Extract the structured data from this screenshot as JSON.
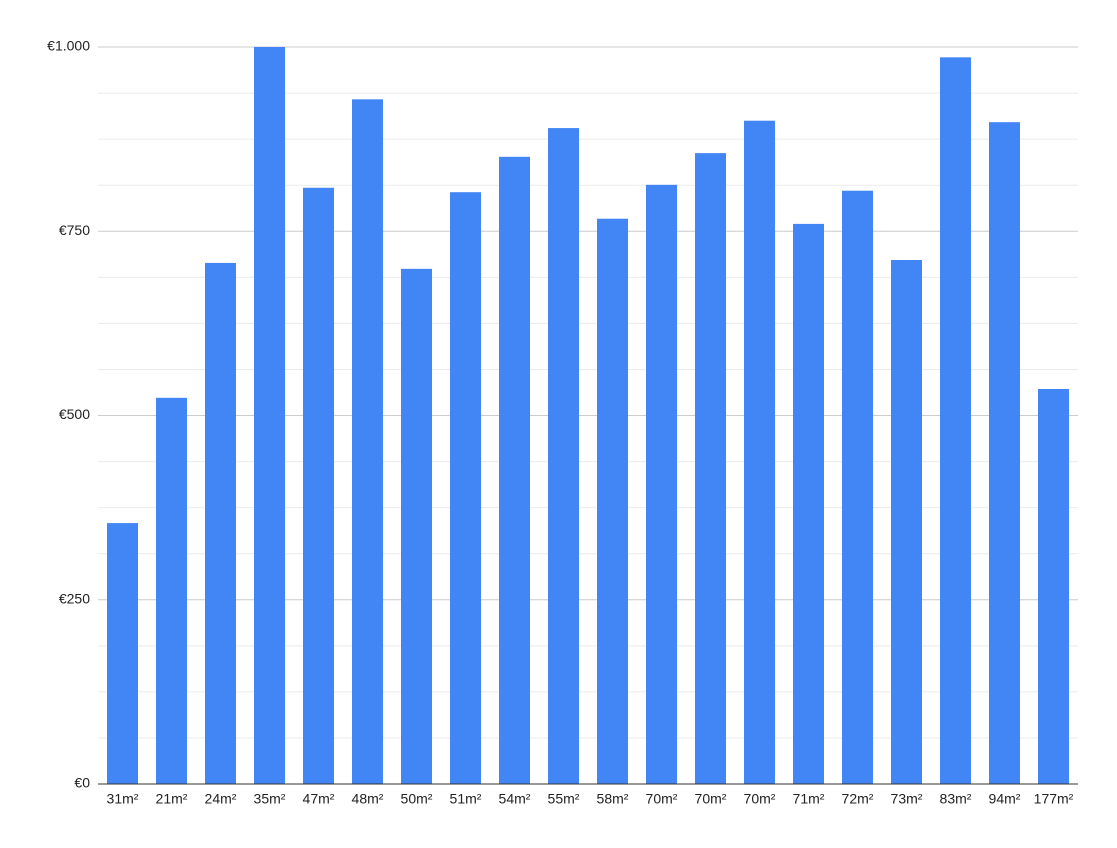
{
  "chart_data": {
    "type": "bar",
    "categories": [
      "31m²",
      "21m²",
      "24m²",
      "35m²",
      "47m²",
      "48m²",
      "50m²",
      "51m²",
      "54m²",
      "55m²",
      "58m²",
      "70m²",
      "70m²",
      "70m²",
      "71m²",
      "72m²",
      "73m²",
      "83m²",
      "94m²",
      "177m²"
    ],
    "values": [
      354,
      524,
      707,
      1000,
      809,
      929,
      699,
      803,
      851,
      890,
      767,
      813,
      856,
      900,
      760,
      805,
      711,
      986,
      898,
      536
    ],
    "color": "#4285f4",
    "ylim": [
      0,
      1000
    ],
    "yticks": [
      {
        "value": 0,
        "label": "€0"
      },
      {
        "value": 250,
        "label": "€250"
      },
      {
        "value": 500,
        "label": "€500"
      },
      {
        "value": 750,
        "label": "€750"
      },
      {
        "value": 1000,
        "label": "€1.000"
      }
    ],
    "minor_yticks": [
      62.5,
      125,
      187.5,
      312.5,
      375,
      437.5,
      562.5,
      625,
      687.5,
      812.5,
      875,
      937.5
    ],
    "grid": true
  }
}
